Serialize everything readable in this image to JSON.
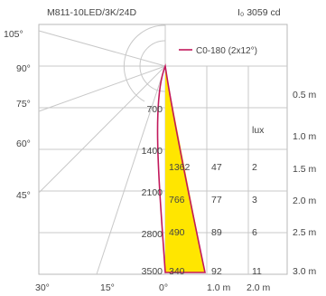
{
  "chart_data": {
    "type": "polar-luminous-intensity",
    "title": "M811-10LED/3K/24D",
    "peak_intensity_label": "I₀ 3059 cd",
    "legend": "C0-180 (2x12°)",
    "angle_labels": [
      "105°",
      "90°",
      "75°",
      "60°",
      "45°",
      "30°",
      "15°",
      "0°"
    ],
    "intensity_labels": [
      "700",
      "1400",
      "2100",
      "2800",
      "3500"
    ],
    "distance_labels": [
      "0.5 m",
      "1.0 m",
      "1.5 m",
      "2.0 m",
      "2.5 m",
      "3.0 m"
    ],
    "bottom_distance_labels": [
      "1.0 m",
      "2.0 m"
    ],
    "table_header": "lux",
    "table_rows": [
      {
        "distance": "1.5 m",
        "intensity": "1362",
        "diameter_mm": "47",
        "lux": "2"
      },
      {
        "distance": "2.0 m",
        "intensity": "766",
        "diameter_mm": "77",
        "lux": "3"
      },
      {
        "distance": "2.5 m",
        "intensity": "490",
        "diameter_mm": "89",
        "lux": "6"
      },
      {
        "distance": "3.0 m",
        "intensity": "340",
        "diameter_mm": "92",
        "lux": "11"
      }
    ],
    "curve_color": "#c2185b",
    "fill_color": "#ffe600",
    "grid_color": "#c8c8c8"
  }
}
